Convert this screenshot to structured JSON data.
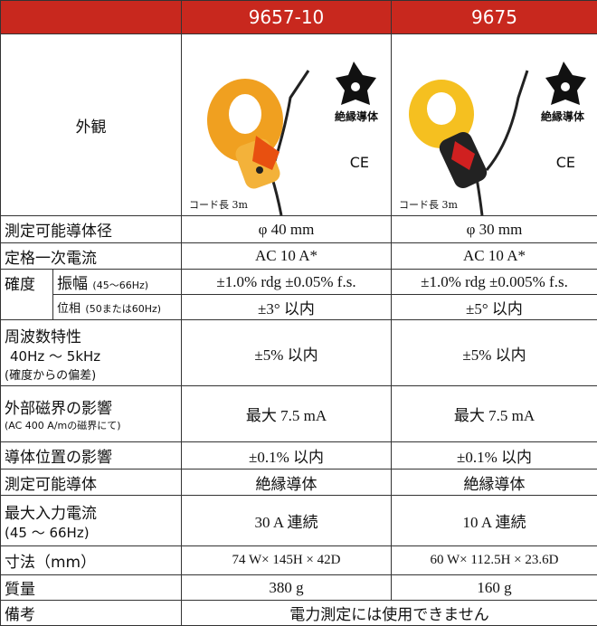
{
  "header": {
    "products": [
      "9657-10",
      "9675"
    ]
  },
  "appearance": {
    "label": "外観",
    "images": [
      {
        "badge": "絶縁導体",
        "mark": "CE",
        "caption": "コード長 3m"
      },
      {
        "badge": "絶縁導体",
        "mark": "CE",
        "caption": "コード長 3m"
      }
    ]
  },
  "rows": {
    "diameter": {
      "label": "測定可能導体径",
      "values": [
        "φ 40 mm",
        "φ 30 mm"
      ]
    },
    "rated": {
      "label": "定格一次電流",
      "values": [
        "AC 10 A*",
        "AC 10 A*"
      ]
    },
    "accuracy": {
      "label": "確度",
      "amplitude": {
        "label": "振幅",
        "note": "(45～66Hz)",
        "values": [
          "±1.0% rdg ±0.05% f.s.",
          "±1.0% rdg ±0.005% f.s."
        ]
      },
      "phase": {
        "label": "位相",
        "note": "(50または60Hz)",
        "values": [
          "±3° 以内",
          "±5° 以内"
        ]
      }
    },
    "frequency": {
      "label": "周波数特性",
      "range": "40Hz ～ 5kHz",
      "note": "(確度からの偏差)",
      "values": [
        "±5% 以内",
        "±5% 以内"
      ]
    },
    "external": {
      "label": "外部磁界の影響",
      "note": "(AC 400 A/mの磁界にて)",
      "values": [
        "最大 7.5 mA",
        "最大 7.5 mA"
      ]
    },
    "position": {
      "label": "導体位置の影響",
      "values": [
        "±0.1% 以内",
        "±0.1% 以内"
      ]
    },
    "conductor": {
      "label": "測定可能導体",
      "values": [
        "絶縁導体",
        "絶縁導体"
      ]
    },
    "maxinput": {
      "label": "最大入力電流",
      "note": "(45 ～ 66Hz)",
      "values": [
        "30 A 連続",
        "10 A 連続"
      ]
    },
    "dimensions": {
      "label": "寸法（mm）",
      "values": [
        "74 W× 145H × 42D",
        "60 W× 112.5H × 23.6D"
      ]
    },
    "mass": {
      "label": "質量",
      "values": [
        "380 g",
        "160 g"
      ]
    },
    "remarks": {
      "label": "備考",
      "value": "電力測定には使用できません"
    }
  }
}
